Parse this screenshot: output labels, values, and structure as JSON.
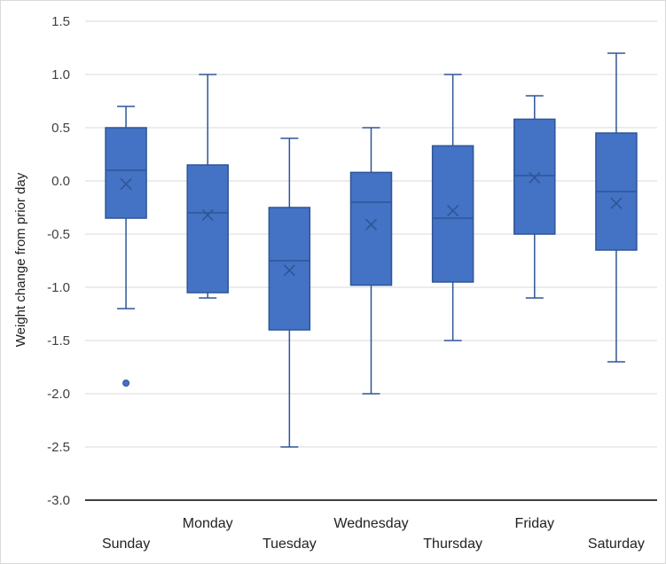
{
  "chart_data": {
    "type": "box",
    "title": "",
    "xlabel": "",
    "ylabel": "Weight change from prior day",
    "ylim": [
      -3.0,
      1.5
    ],
    "yticks": [
      1.5,
      1.0,
      0.5,
      0.0,
      -0.5,
      -1.0,
      -1.5,
      -2.0,
      -2.5,
      -3.0
    ],
    "ytick_labels": [
      "1.5",
      "1.0",
      "0.5",
      "0.0",
      "-0.5",
      "-1.0",
      "-1.5",
      "-2.0",
      "-2.5",
      "-3.0"
    ],
    "grid": true,
    "legend": "none",
    "colors": {
      "box_fill": "#4472c4",
      "box_stroke": "#2f5597",
      "grid": "#d9d9d9",
      "axis": "#000000"
    },
    "categories": [
      "Sunday",
      "Monday",
      "Tuesday",
      "Wednesday",
      "Thursday",
      "Friday",
      "Saturday"
    ],
    "boxes": [
      {
        "min": -1.2,
        "q1": -0.35,
        "median": 0.1,
        "q3": 0.5,
        "max": 0.7,
        "mean": -0.03,
        "outliers": [
          -1.9
        ]
      },
      {
        "min": -1.1,
        "q1": -1.05,
        "median": -0.3,
        "q3": 0.15,
        "max": 1.0,
        "mean": -0.32,
        "outliers": []
      },
      {
        "min": -2.5,
        "q1": -1.4,
        "median": -0.75,
        "q3": -0.25,
        "max": 0.4,
        "mean": -0.84,
        "outliers": []
      },
      {
        "min": -2.0,
        "q1": -0.98,
        "median": -0.2,
        "q3": 0.08,
        "max": 0.5,
        "mean": -0.41,
        "outliers": []
      },
      {
        "min": -1.5,
        "q1": -0.95,
        "median": -0.35,
        "q3": 0.33,
        "max": 1.0,
        "mean": -0.28,
        "outliers": []
      },
      {
        "min": -1.1,
        "q1": -0.5,
        "median": 0.05,
        "q3": 0.58,
        "max": 0.8,
        "mean": 0.03,
        "outliers": []
      },
      {
        "min": -1.7,
        "q1": -0.65,
        "median": -0.1,
        "q3": 0.45,
        "max": 1.2,
        "mean": -0.21,
        "outliers": []
      }
    ]
  }
}
